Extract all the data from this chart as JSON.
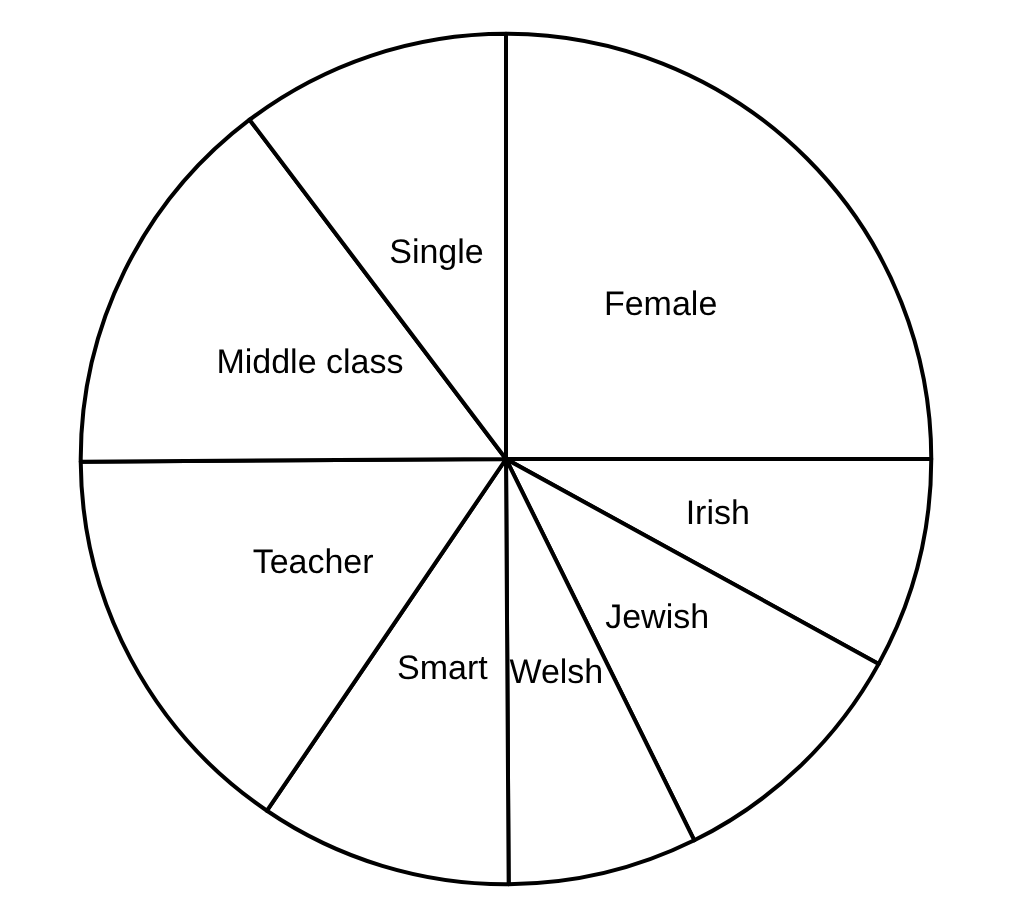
{
  "chart_data": {
    "type": "pie",
    "categories": [
      "Female",
      "Irish",
      "Jewish",
      "Welsh",
      "Smart",
      "Teacher",
      "Middle class",
      "Single"
    ],
    "values": [
      25,
      8,
      9.7,
      7.2,
      9.6,
      15.4,
      14.8,
      10.3
    ],
    "colors": [
      "#ffffff",
      "#ffffff",
      "#ffffff",
      "#ffffff",
      "#ffffff",
      "#ffffff",
      "#ffffff",
      "#ffffff"
    ],
    "legend": false
  }
}
